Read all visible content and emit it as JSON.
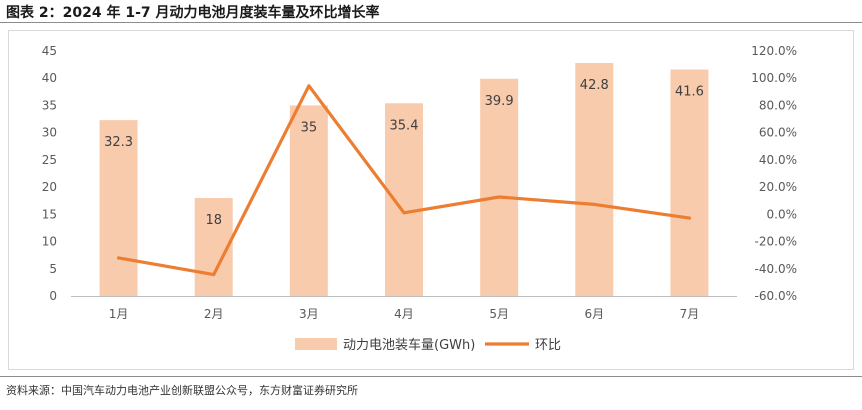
{
  "figure_title": "图表 2：2024 年 1-7 月动力电池月度装车量及环比增长率",
  "source": "资料来源：中国汽车动力电池产业创新联盟公众号，东方财富证券研究所",
  "chart_data": {
    "type": "bar+line",
    "categories": [
      "1月",
      "2月",
      "3月",
      "4月",
      "5月",
      "6月",
      "7月"
    ],
    "series": [
      {
        "name": "动力电池装车量(GWh)",
        "type": "bar",
        "axis": "left",
        "values": [
          32.3,
          18,
          35,
          35.4,
          39.9,
          42.8,
          41.6
        ],
        "data_labels": [
          "32.3",
          "18",
          "35",
          "35.4",
          "39.9",
          "42.8",
          "41.6"
        ],
        "color": "#F8CBAD"
      },
      {
        "name": "环比",
        "type": "line",
        "axis": "right",
        "values": [
          -32.0,
          -44.3,
          94.4,
          1.1,
          12.7,
          7.3,
          -2.8
        ],
        "color": "#ED7D31"
      }
    ],
    "left_axis": {
      "ylim": [
        0,
        45
      ],
      "ticks": [
        "0",
        "5",
        "10",
        "15",
        "20",
        "25",
        "30",
        "35",
        "40",
        "45"
      ]
    },
    "right_axis": {
      "ylim": [
        -60,
        120
      ],
      "ticks": [
        "-60.0%",
        "-40.0%",
        "-20.0%",
        "0.0%",
        "20.0%",
        "40.0%",
        "60.0%",
        "80.0%",
        "100.0%",
        "120.0%"
      ]
    },
    "grid": false,
    "legend_position": "bottom"
  }
}
